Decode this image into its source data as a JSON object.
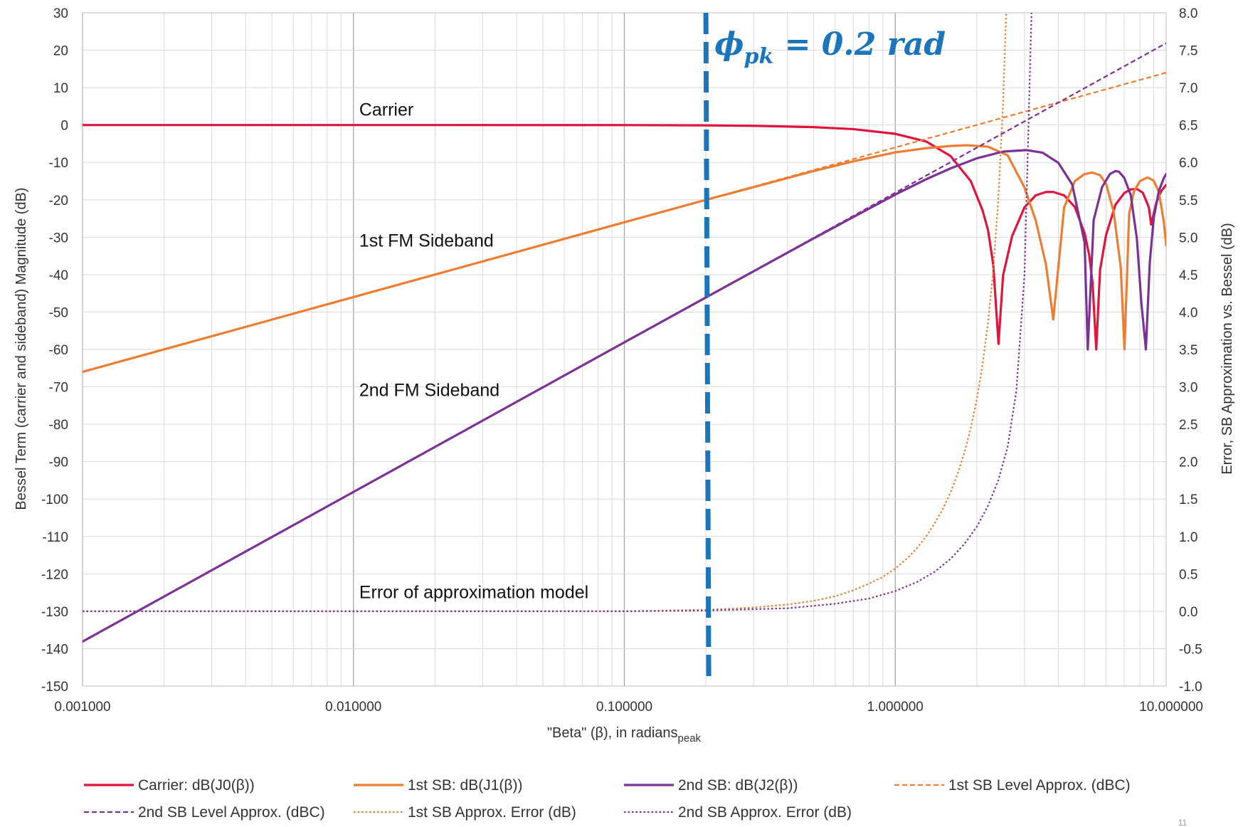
{
  "chart_data": {
    "type": "line",
    "x_axis": {
      "label_main": "\"Beta\" (β), in radians",
      "label_sub": "peak",
      "scale": "log",
      "range": [
        0.001,
        10
      ],
      "ticks": [
        {
          "value": 0.001,
          "label": "0.001000"
        },
        {
          "value": 0.01,
          "label": "0.010000"
        },
        {
          "value": 0.1,
          "label": "0.100000"
        },
        {
          "value": 1,
          "label": "1.000000"
        },
        {
          "value": 10,
          "label": "10.000000"
        }
      ]
    },
    "y_left": {
      "label": "Bessel Term  (carrier and sideband) Magnitude (dB)",
      "range": [
        -150,
        30
      ],
      "ticks": [
        {
          "value": 30,
          "label": "30"
        },
        {
          "value": 20,
          "label": "20"
        },
        {
          "value": 10,
          "label": "10"
        },
        {
          "value": 0,
          "label": "0"
        },
        {
          "value": -10,
          "label": "-10"
        },
        {
          "value": -20,
          "label": "-20"
        },
        {
          "value": -30,
          "label": "-30"
        },
        {
          "value": -40,
          "label": "-40"
        },
        {
          "value": -50,
          "label": "-50"
        },
        {
          "value": -60,
          "label": "-60"
        },
        {
          "value": -70,
          "label": "-70"
        },
        {
          "value": -80,
          "label": "-80"
        },
        {
          "value": -90,
          "label": "-90"
        },
        {
          "value": -100,
          "label": "-100"
        },
        {
          "value": -110,
          "label": "-110"
        },
        {
          "value": -120,
          "label": "-120"
        },
        {
          "value": -130,
          "label": "-130"
        },
        {
          "value": -140,
          "label": "-140"
        },
        {
          "value": -150,
          "label": "-150"
        }
      ]
    },
    "y_right": {
      "label": "Error, SB Approximation vs. Bessel (dB)",
      "range": [
        -1.0,
        8.0
      ],
      "ticks": [
        {
          "value": 8.0,
          "label": "8.0"
        },
        {
          "value": 7.5,
          "label": "7.5"
        },
        {
          "value": 7.0,
          "label": "7.0"
        },
        {
          "value": 6.5,
          "label": "6.5"
        },
        {
          "value": 6.0,
          "label": "6.0"
        },
        {
          "value": 5.5,
          "label": "5.5"
        },
        {
          "value": 5.0,
          "label": "5.0"
        },
        {
          "value": 4.5,
          "label": "4.5"
        },
        {
          "value": 4.0,
          "label": "4.0"
        },
        {
          "value": 3.5,
          "label": "3.5"
        },
        {
          "value": 3.0,
          "label": "3.0"
        },
        {
          "value": 2.5,
          "label": "2.5"
        },
        {
          "value": 2.0,
          "label": "2.0"
        },
        {
          "value": 1.5,
          "label": "1.5"
        },
        {
          "value": 1.0,
          "label": "1.0"
        },
        {
          "value": 0.5,
          "label": "0.5"
        },
        {
          "value": 0.0,
          "label": "0.0"
        },
        {
          "value": -0.5,
          "label": "-0.5"
        },
        {
          "value": -1.0,
          "label": "-1.0"
        }
      ]
    },
    "grid": true,
    "legend_position": "bottom",
    "series": [
      {
        "name": "Carrier:  dB(J0(β))",
        "axis": "left",
        "color": "#e0143c",
        "style": "solid",
        "x": [
          0.001,
          0.01,
          0.1,
          0.2,
          0.3,
          0.5,
          0.7,
          1.0,
          1.3,
          1.6,
          1.9,
          2.1,
          2.2,
          2.3,
          2.405,
          2.5,
          2.7,
          3.0,
          3.3,
          3.6,
          3.83,
          4.2,
          4.6,
          5.0,
          5.2,
          5.35,
          5.52,
          5.7,
          6.0,
          6.5,
          7.0,
          7.4,
          7.8,
          8.2,
          8.6,
          8.654,
          8.8,
          9.2,
          9.6,
          10.0
        ],
        "y": [
          0,
          0,
          -0.02,
          -0.09,
          -0.2,
          -0.56,
          -1.1,
          -2.35,
          -4.4,
          -8.3,
          -15.0,
          -22.8,
          -28.1,
          -37.3,
          -58.5,
          -40.2,
          -29.7,
          -22.0,
          -18.8,
          -17.9,
          -17.9,
          -18.8,
          -21.9,
          -28.9,
          -34.8,
          -42.3,
          -60.0,
          -38.8,
          -29.4,
          -21.3,
          -18.2,
          -17.2,
          -17.1,
          -18.1,
          -21.7,
          -22.5,
          -26.6,
          -20.7,
          -17.6,
          -16.0
        ]
      },
      {
        "name": "1st SB: dB(J1(β))",
        "axis": "left",
        "color": "#ed7d31",
        "style": "solid",
        "x": [
          0.001,
          0.01,
          0.1,
          0.2,
          0.3,
          0.5,
          0.7,
          1.0,
          1.3,
          1.6,
          1.84,
          2.2,
          2.6,
          3.0,
          3.3,
          3.6,
          3.83,
          4.2,
          4.6,
          5.0,
          5.33,
          5.7,
          6.0,
          6.4,
          6.8,
          7.016,
          7.3,
          7.6,
          8.0,
          8.536,
          9.0,
          9.4,
          9.8,
          10.0
        ],
        "y": [
          -66.0,
          -46.0,
          -26.0,
          -20.0,
          -16.6,
          -12.3,
          -9.7,
          -7.3,
          -6.2,
          -5.6,
          -5.4,
          -5.8,
          -8.1,
          -16.7,
          -25.5,
          -37.3,
          -52.0,
          -22.1,
          -15.0,
          -13.1,
          -12.7,
          -13.4,
          -15.7,
          -23.2,
          -38.2,
          -60.0,
          -23.8,
          -17.8,
          -15.0,
          -14.0,
          -14.9,
          -17.9,
          -25.8,
          -32.2
        ]
      },
      {
        "name": "2nd SB:  dB(J2(β))",
        "axis": "left",
        "color": "#7b3294",
        "style": "solid",
        "x": [
          0.001,
          0.01,
          0.1,
          0.2,
          0.3,
          0.5,
          0.7,
          1.0,
          1.3,
          1.6,
          2.0,
          2.5,
          3.05,
          3.5,
          4.0,
          4.5,
          5.0,
          5.136,
          5.4,
          5.8,
          6.2,
          6.5,
          6.7,
          7.0,
          7.4,
          7.8,
          8.1,
          8.417,
          8.7,
          9.0,
          9.4,
          9.8,
          10.0
        ],
        "y": [
          -138.1,
          -98.1,
          -58.1,
          -46.1,
          -39.1,
          -30.3,
          -24.6,
          -18.6,
          -14.5,
          -11.6,
          -8.9,
          -7.1,
          -6.7,
          -7.4,
          -10.1,
          -15.9,
          -31.4,
          -60.0,
          -25.4,
          -16.6,
          -13.1,
          -12.3,
          -12.5,
          -14.1,
          -18.7,
          -30.5,
          -47.6,
          -60.0,
          -36.8,
          -24.8,
          -17.6,
          -14.2,
          -13.1
        ]
      },
      {
        "name": "1st SB Level Approx. (dBC)",
        "axis": "left",
        "color": "#ed7d31",
        "style": "dashed",
        "x": [
          0.001,
          10.0
        ],
        "y": [
          -66.0,
          14.0
        ]
      },
      {
        "name": "2nd SB Level Approx. (dBC)",
        "axis": "left",
        "color": "#7b3294",
        "style": "dashed",
        "x": [
          0.001,
          10.0
        ],
        "y": [
          -138.1,
          21.9
        ]
      },
      {
        "name": "1st SB Approx. Error (dB)",
        "axis": "right",
        "color": "#ed7d31",
        "style": "dotted",
        "x": [
          0.001,
          0.1,
          0.2,
          0.3,
          0.4,
          0.5,
          0.6,
          0.7,
          0.8,
          0.9,
          1.0,
          1.1,
          1.2,
          1.3,
          1.4,
          1.5,
          1.6,
          1.7,
          1.8,
          1.9,
          2.0,
          2.1,
          2.2,
          2.3,
          2.4,
          2.5,
          2.6
        ],
        "y": [
          0.0,
          0.0,
          0.02,
          0.05,
          0.09,
          0.14,
          0.2,
          0.28,
          0.37,
          0.46,
          0.57,
          0.7,
          0.84,
          1.0,
          1.18,
          1.37,
          1.59,
          1.84,
          2.12,
          2.45,
          2.83,
          3.3,
          3.86,
          4.56,
          5.5,
          6.8,
          8.6
        ]
      },
      {
        "name": "2nd SB Approx. Error (dB)",
        "axis": "right",
        "color": "#7b3294",
        "style": "dotted",
        "x": [
          0.001,
          0.1,
          0.2,
          0.4,
          0.6,
          0.8,
          1.0,
          1.2,
          1.4,
          1.6,
          1.8,
          2.0,
          2.2,
          2.4,
          2.6,
          2.8,
          3.0,
          3.2
        ],
        "y": [
          0.0,
          0.0,
          0.01,
          0.04,
          0.1,
          0.17,
          0.27,
          0.39,
          0.53,
          0.7,
          0.9,
          1.13,
          1.41,
          1.75,
          2.2,
          2.95,
          4.5,
          8.3
        ]
      }
    ],
    "annotations": [
      {
        "text": "Carrier",
        "x": 0.0105,
        "y": 2.5
      },
      {
        "text": "1st FM Sideband",
        "x": 0.0105,
        "y": -32.5
      },
      {
        "text": "2nd FM Sideband",
        "x": 0.0105,
        "y": -72.5
      },
      {
        "text": "Error of approximation  model",
        "x": 0.0105,
        "y": -126.5
      }
    ],
    "marker_line": {
      "x": 0.2,
      "color": "#1b75bb",
      "label": "ϕpk = 0.2 rad",
      "label_base": "ϕ",
      "label_sub": "pk",
      "label_rest": " = 0.2 rad"
    }
  },
  "page_number": "11"
}
